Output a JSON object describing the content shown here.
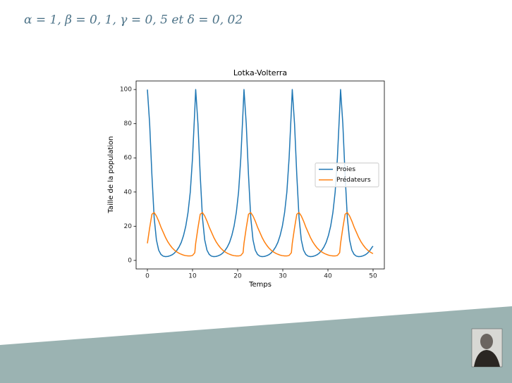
{
  "heading": "α = 1, β = 0, 1, γ = 0, 5 et δ = 0, 02",
  "chart_data": {
    "type": "line",
    "title": "Lotka-Volterra",
    "x_label": "Temps",
    "y_label": "Taille de la population",
    "x": [
      0,
      0.5,
      1,
      1.5,
      2,
      2.5,
      3,
      3.5,
      4,
      4.5,
      5,
      5.5,
      6,
      6.5,
      7,
      7.5,
      8,
      8.5,
      9,
      9.5,
      10,
      10.5,
      10.7,
      11.2,
      11.7,
      12.2,
      12.7,
      13.2,
      13.7,
      14.2,
      14.7,
      15.2,
      15.7,
      16.2,
      16.7,
      17.2,
      17.7,
      18.2,
      18.7,
      19.2,
      19.7,
      20.2,
      20.7,
      21.2,
      21.4,
      21.9,
      22.4,
      22.9,
      23.4,
      23.9,
      24.4,
      24.9,
      25.4,
      25.9,
      26.4,
      26.9,
      27.4,
      27.9,
      28.4,
      28.9,
      29.4,
      29.9,
      30.4,
      30.9,
      31.4,
      31.9,
      32.1,
      32.6,
      33.1,
      33.6,
      34.1,
      34.6,
      35.1,
      35.6,
      36.1,
      36.6,
      37.1,
      37.6,
      38.1,
      38.6,
      39.1,
      39.6,
      40.1,
      40.6,
      41.1,
      41.6,
      42.1,
      42.6,
      42.8,
      43.3,
      43.8,
      44.3,
      44.8,
      45.3,
      45.8,
      46.3,
      46.8,
      47.3,
      47.8,
      48.3,
      48.8,
      49.3,
      49.8,
      50
    ],
    "series": [
      {
        "name": "Proies",
        "color": "#1f77b4",
        "values": [
          100,
          80,
          50,
          25,
          12,
          6,
          3.5,
          2.5,
          2.2,
          2.3,
          2.7,
          3.3,
          4.3,
          5.8,
          7.8,
          10.5,
          14.5,
          20,
          28,
          40,
          60,
          88,
          100,
          80,
          50,
          25,
          12,
          6,
          3.5,
          2.5,
          2.2,
          2.3,
          2.7,
          3.3,
          4.3,
          5.8,
          7.8,
          10.5,
          14.5,
          20,
          28,
          40,
          60,
          88,
          100,
          80,
          50,
          25,
          12,
          6,
          3.5,
          2.5,
          2.2,
          2.3,
          2.7,
          3.3,
          4.3,
          5.8,
          7.8,
          10.5,
          14.5,
          20,
          28,
          40,
          60,
          88,
          100,
          80,
          50,
          25,
          12,
          6,
          3.5,
          2.5,
          2.2,
          2.3,
          2.7,
          3.3,
          4.3,
          5.8,
          7.8,
          10.5,
          14.5,
          20,
          28,
          40,
          60,
          88,
          100,
          80,
          50,
          25,
          12,
          6,
          3.5,
          2.5,
          2.2,
          2.3,
          2.7,
          3.3,
          4.3,
          5.8,
          7.8,
          8.3
        ]
      },
      {
        "name": "Prédateurs",
        "color": "#ff7f0e",
        "values": [
          10,
          19,
          27,
          28,
          26,
          23,
          19.5,
          16.5,
          13.5,
          11,
          9,
          7.3,
          6,
          5,
          4.2,
          3.6,
          3.1,
          2.8,
          2.6,
          2.6,
          2.9,
          4.5,
          10,
          19,
          27,
          28,
          26,
          23,
          19.5,
          16.5,
          13.5,
          11,
          9,
          7.3,
          6,
          5,
          4.2,
          3.6,
          3.1,
          2.8,
          2.6,
          2.6,
          2.9,
          4.5,
          10,
          19,
          27,
          28,
          26,
          23,
          19.5,
          16.5,
          13.5,
          11,
          9,
          7.3,
          6,
          5,
          4.2,
          3.6,
          3.1,
          2.8,
          2.6,
          2.6,
          2.9,
          4.5,
          10,
          19,
          27,
          28,
          26,
          23,
          19.5,
          16.5,
          13.5,
          11,
          9,
          7.3,
          6,
          5,
          4.2,
          3.6,
          3.1,
          2.8,
          2.6,
          2.6,
          2.9,
          4.5,
          10,
          19,
          27,
          28,
          26,
          23,
          19.5,
          16.5,
          13.5,
          11,
          9,
          7.3,
          6,
          5,
          4.2,
          4.0
        ]
      }
    ],
    "xlim": [
      -2.5,
      52.5
    ],
    "ylim": [
      -5,
      105
    ],
    "xticks": [
      0,
      10,
      20,
      30,
      40,
      50
    ],
    "yticks": [
      0,
      20,
      40,
      60,
      80,
      100
    ],
    "grid": false,
    "legend": "center right"
  }
}
